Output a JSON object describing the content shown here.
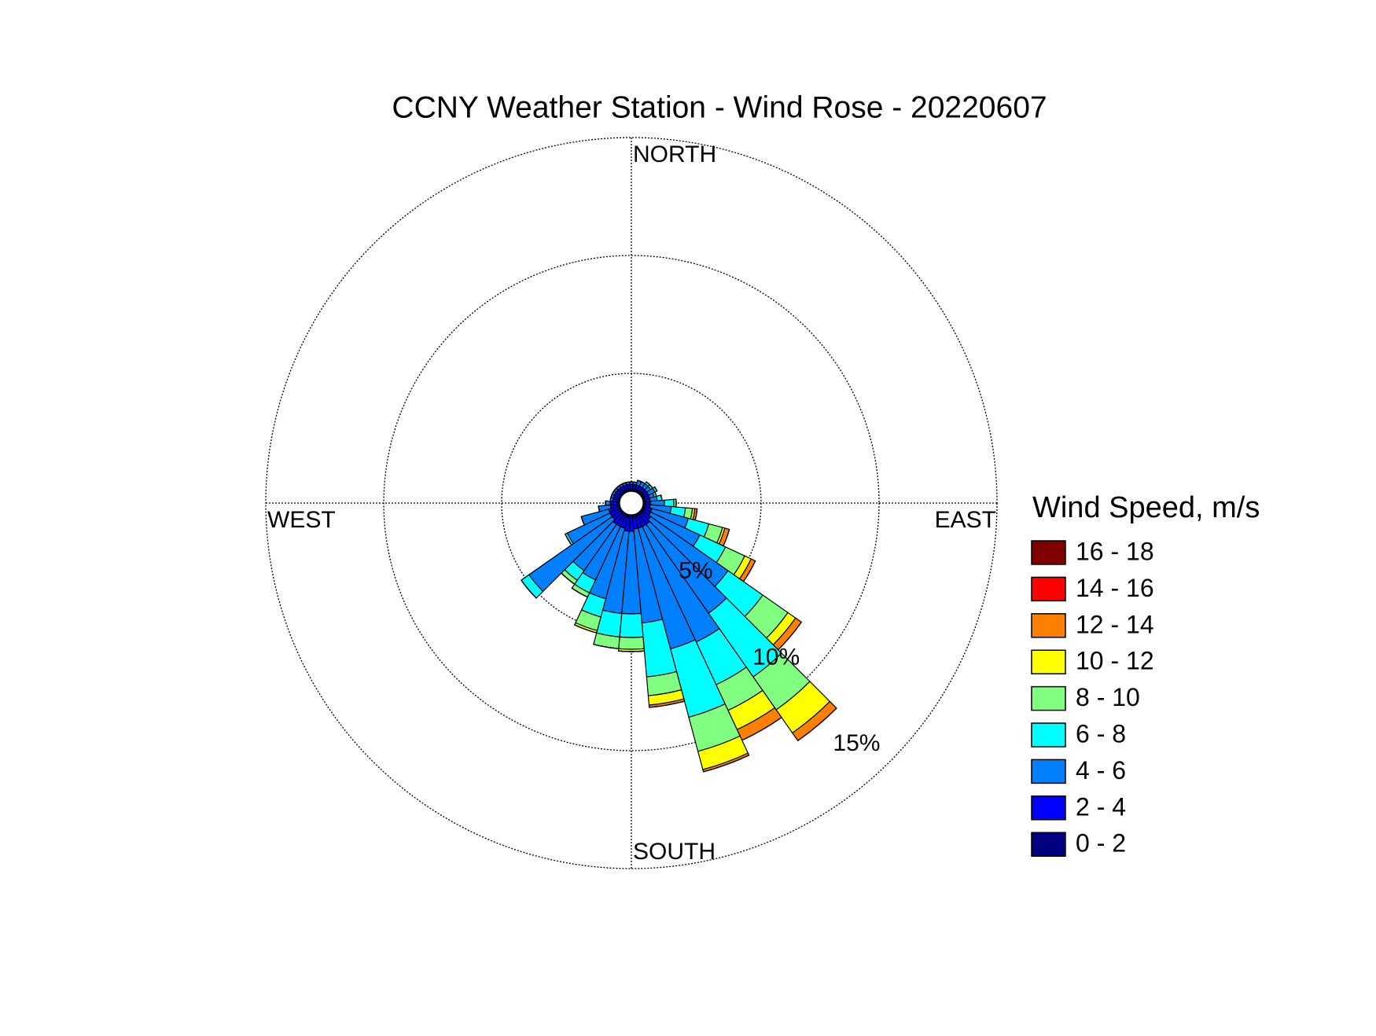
{
  "chart_data": {
    "type": "windrose",
    "title": "CCNY Weather Station - Wind Rose - 20220607",
    "legend_title": "Wind Speed, m/s",
    "direction_labels": [
      "NORTH",
      "EAST",
      "SOUTH",
      "WEST"
    ],
    "directions": [
      0,
      10,
      20,
      30,
      40,
      50,
      60,
      70,
      80,
      90,
      100,
      110,
      120,
      130,
      140,
      150,
      160,
      170,
      180,
      190,
      200,
      210,
      220,
      230,
      240,
      250,
      260,
      270,
      280,
      290,
      300,
      310,
      320,
      330,
      340,
      350
    ],
    "rlim": [
      0,
      15
    ],
    "rticks": [
      {
        "value": 5,
        "label": "5%"
      },
      {
        "value": 10,
        "label": "10%"
      },
      {
        "value": 15,
        "label": "15%"
      }
    ],
    "series": [
      {
        "name": "0 - 2",
        "color": "#000080",
        "values": [
          0.1,
          0.1,
          0.1,
          0.1,
          0.1,
          0.1,
          0.1,
          0.1,
          0.1,
          0.1,
          0.1,
          0.1,
          0.1,
          0.1,
          0.1,
          0.1,
          0.1,
          0.1,
          0.1,
          0.1,
          0.1,
          0.1,
          0.1,
          0.1,
          0.1,
          0.1,
          0.1,
          0.1,
          0.1,
          0.1,
          0.1,
          0.1,
          0.1,
          0.1,
          0.1,
          0.1
        ]
      },
      {
        "name": "2 - 4",
        "color": "#0000ff",
        "values": [
          0.2,
          0.2,
          0.2,
          0.2,
          0.2,
          0.2,
          0.2,
          0.2,
          0.2,
          0.2,
          0.2,
          0.3,
          0.3,
          0.4,
          0.5,
          0.5,
          0.5,
          0.5,
          0.6,
          0.6,
          0.5,
          0.5,
          0.5,
          0.4,
          0.4,
          0.4,
          0.3,
          0.3,
          0.2,
          0.2,
          0.2,
          0.2,
          0.2,
          0.2,
          0.2,
          0.2
        ]
      },
      {
        "name": "4 - 6",
        "color": "#0080ff",
        "values": [
          0.1,
          0.1,
          0.2,
          0.2,
          0.2,
          0.2,
          0.3,
          0.2,
          0.3,
          0.6,
          0.9,
          1.6,
          2.3,
          4.0,
          4.6,
          5.4,
          5.3,
          4.0,
          3.5,
          3.5,
          3.1,
          2.5,
          2.4,
          4.3,
          2.0,
          1.2,
          0.5,
          0.2,
          0.1,
          0.1,
          0.1,
          0.1,
          0.1,
          0.1,
          0.1,
          0.1
        ]
      },
      {
        "name": "6 - 8",
        "color": "#00ffff",
        "values": [
          0,
          0,
          0,
          0,
          0.1,
          0.1,
          0.1,
          0.1,
          0.2,
          0.4,
          0.6,
          0.9,
          1.2,
          1.8,
          3.3,
          2.0,
          3.0,
          2.3,
          1.0,
          1.0,
          0.8,
          0.6,
          0.5,
          0.4,
          0.1,
          0,
          0,
          0,
          0,
          0,
          0,
          0,
          0,
          0,
          0,
          0
        ]
      },
      {
        "name": "8 - 10",
        "color": "#80ff80",
        "values": [
          0,
          0,
          0,
          0,
          0,
          0,
          0,
          0,
          0,
          0.1,
          0.3,
          0.6,
          0.9,
          1.3,
          1.7,
          1.2,
          1.5,
          0.8,
          0.5,
          0.5,
          0.6,
          0.2,
          0.2,
          0,
          0,
          0,
          0,
          0,
          0,
          0,
          0,
          0,
          0,
          0,
          0,
          0
        ]
      },
      {
        "name": "10 - 12",
        "color": "#ffff00",
        "values": [
          0,
          0,
          0,
          0,
          0,
          0,
          0,
          0,
          0,
          0,
          0.1,
          0.1,
          0.3,
          0.4,
          1.2,
          0.9,
          0.8,
          0.4,
          0.1,
          0,
          0.1,
          0,
          0,
          0,
          0,
          0,
          0,
          0,
          0,
          0,
          0,
          0,
          0,
          0,
          0,
          0
        ]
      },
      {
        "name": "12 - 14",
        "color": "#ff8000",
        "values": [
          0,
          0,
          0,
          0,
          0,
          0,
          0,
          0,
          0,
          0,
          0.1,
          0.2,
          0.2,
          0.3,
          0.4,
          0.5,
          0.1,
          0.1,
          0,
          0,
          0,
          0,
          0,
          0,
          0,
          0,
          0,
          0,
          0,
          0,
          0,
          0,
          0,
          0,
          0,
          0
        ]
      },
      {
        "name": "14 - 16",
        "color": "#ff0000",
        "values": [
          0,
          0,
          0,
          0,
          0,
          0,
          0,
          0,
          0,
          0,
          0,
          0,
          0,
          0,
          0,
          0,
          0,
          0,
          0,
          0,
          0,
          0,
          0,
          0,
          0,
          0,
          0,
          0,
          0,
          0,
          0,
          0,
          0,
          0,
          0,
          0
        ]
      },
      {
        "name": "16 - 18",
        "color": "#800000",
        "values": [
          0,
          0,
          0,
          0,
          0,
          0,
          0,
          0,
          0,
          0,
          0,
          0,
          0,
          0,
          0,
          0,
          0,
          0,
          0,
          0,
          0,
          0,
          0,
          0,
          0,
          0,
          0,
          0,
          0,
          0,
          0,
          0,
          0,
          0,
          0,
          0
        ]
      }
    ]
  }
}
